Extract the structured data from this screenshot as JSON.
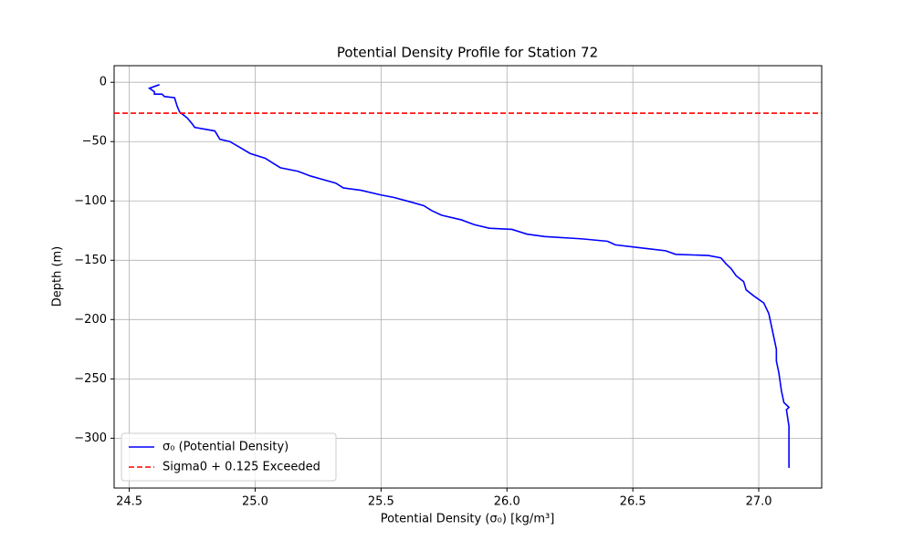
{
  "chart_data": {
    "type": "line",
    "title": "Potential Density Profile for Station 72",
    "x_label": "Potential Density (σ₀) [kg/m³]",
    "y_label": "Depth (m)",
    "xlim": [
      24.44,
      27.25
    ],
    "ylim": [
      -342,
      14
    ],
    "xticks": [
      24.5,
      {
        "value": 25,
        "label": "25.0"
      },
      25.5,
      {
        "value": 26,
        "label": "26.0"
      },
      26.5,
      {
        "value": 27,
        "label": "27.0"
      }
    ],
    "yticks": [
      0,
      {
        "value": -50,
        "label": "−50"
      },
      {
        "value": -100,
        "label": "−100"
      },
      {
        "value": -150,
        "label": "−150"
      },
      {
        "value": -200,
        "label": "−200"
      },
      {
        "value": -250,
        "label": "−250"
      },
      {
        "value": -300,
        "label": "−300"
      }
    ],
    "grid": true,
    "legend": "lower left",
    "series": [
      {
        "name": "σ₀ (Potential Density)",
        "color": "#0000ff",
        "x": [
          24.62,
          24.58,
          24.6,
          24.6,
          24.63,
          24.64,
          24.68,
          24.69,
          24.7,
          24.73,
          24.75,
          24.76,
          24.84,
          24.86,
          24.9,
          24.94,
          24.98,
          25.04,
          25.07,
          25.1,
          25.17,
          25.22,
          25.27,
          25.32,
          25.35,
          25.42,
          25.5,
          25.55,
          25.62,
          25.67,
          25.7,
          25.74,
          25.82,
          25.87,
          25.93,
          26.02,
          26.08,
          26.15,
          26.3,
          26.4,
          26.43,
          26.55,
          26.63,
          26.67,
          26.8,
          26.85,
          26.87,
          26.89,
          26.91,
          26.94,
          26.95,
          26.98,
          27.02,
          27.04,
          27.05,
          27.06,
          27.07,
          27.07,
          27.08,
          27.09,
          27.1,
          27.12,
          27.11,
          27.12,
          27.12,
          27.12
        ],
        "values": [
          -2,
          -5,
          -8,
          -10,
          -10,
          -12,
          -13,
          -20,
          -25,
          -30,
          -35,
          -38,
          -41,
          -48,
          -50,
          -55,
          -60,
          -64,
          -68,
          -72,
          -75,
          -79,
          -82,
          -85,
          -89,
          -91,
          -95,
          -97,
          -101,
          -104,
          -108,
          -112,
          -116,
          -120,
          -123,
          -124,
          -128,
          -130,
          -132,
          -134,
          -137,
          -140,
          -142,
          -145,
          -146,
          -148,
          -153,
          -157,
          -163,
          -168,
          -175,
          -180,
          -186,
          -195,
          -205,
          -215,
          -225,
          -235,
          -245,
          -260,
          -270,
          -274,
          -276,
          -290,
          -310,
          -325
        ]
      }
    ],
    "hlines": [
      {
        "name": "Sigma0 + 0.125 Exceeded",
        "value": -26,
        "color": "#ff0000",
        "style": "dashed"
      }
    ]
  }
}
